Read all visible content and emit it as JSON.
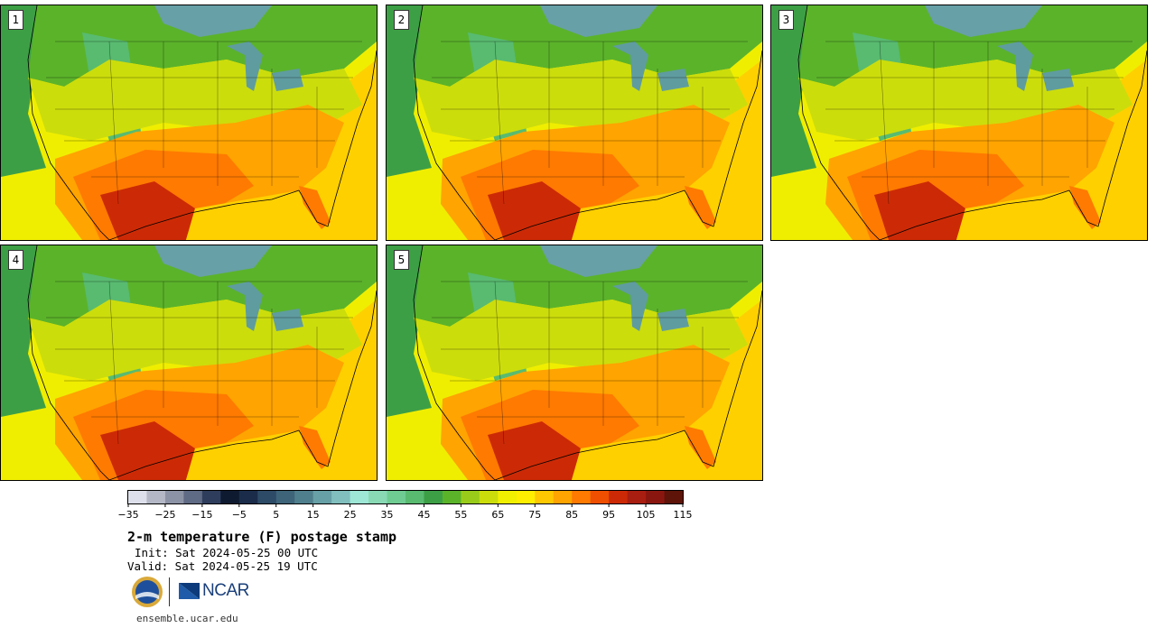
{
  "panels": [
    {
      "label": "1"
    },
    {
      "label": "2"
    },
    {
      "label": "3"
    },
    {
      "label": "4"
    },
    {
      "label": "5"
    }
  ],
  "colorbar": {
    "colors": [
      "#dde0ea",
      "#b4b8c6",
      "#8c93a6",
      "#5f6a84",
      "#2f3d5c",
      "#0e1a30",
      "#1a2c4a",
      "#2d4a66",
      "#3d6479",
      "#4f7f8c",
      "#67a0a6",
      "#80bfbd",
      "#9ee6d6",
      "#88d9b4",
      "#6fcc92",
      "#58bb70",
      "#3d9f45",
      "#5bb32a",
      "#99cc1a",
      "#ccdd0c",
      "#f0f000",
      "#ffee00",
      "#ffc800",
      "#ffa400",
      "#ff7a00",
      "#ee4f00",
      "#cc2a06",
      "#a81e10",
      "#8a170f",
      "#5e1409"
    ],
    "ticks": [
      "−35",
      "−25",
      "−15",
      "−5",
      "5",
      "15",
      "25",
      "35",
      "45",
      "55",
      "65",
      "75",
      "85",
      "95",
      "105",
      "115"
    ]
  },
  "title": "2-m temperature (F) postage stamp",
  "init": "Init: Sat 2024-05-25 00 UTC",
  "valid": "Valid: Sat 2024-05-25 19 UTC",
  "logos": {
    "nsf": "NSF",
    "ncar": "NCAR"
  },
  "url": "ensemble.ucar.edu"
}
